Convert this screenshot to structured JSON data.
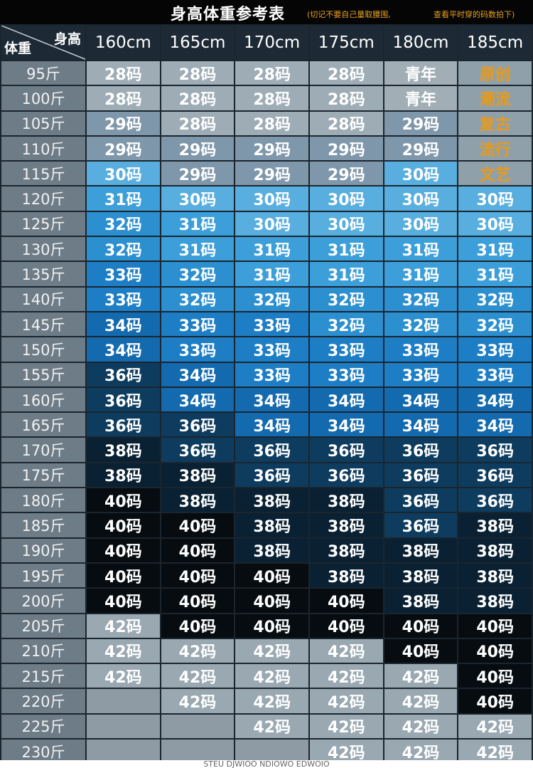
{
  "header": {
    "title": "身高体重参考表",
    "note_left": "(切记不要自己量取腰围,",
    "note_right": "查看平时穿的码数拍下)"
  },
  "table": {
    "corner_top": "身高",
    "corner_bottom": "体重",
    "columns": [
      "160cm",
      "165cm",
      "170cm",
      "175cm",
      "180cm",
      "185cm"
    ],
    "rows": [
      {
        "weight": "95斤",
        "sizes": [
          "28码",
          "28码",
          "28码",
          "28码",
          "青年",
          "原创"
        ]
      },
      {
        "weight": "100斤",
        "sizes": [
          "28码",
          "28码",
          "28码",
          "28码",
          "青年",
          "潮流"
        ]
      },
      {
        "weight": "105斤",
        "sizes": [
          "29码",
          "28码",
          "28码",
          "28码",
          "29码",
          "复古"
        ]
      },
      {
        "weight": "110斤",
        "sizes": [
          "29码",
          "29码",
          "29码",
          "29码",
          "29码",
          "流行"
        ]
      },
      {
        "weight": "115斤",
        "sizes": [
          "30码",
          "29码",
          "29码",
          "29码",
          "30码",
          "文艺"
        ]
      },
      {
        "weight": "120斤",
        "sizes": [
          "31码",
          "30码",
          "30码",
          "30码",
          "30码",
          "30码"
        ]
      },
      {
        "weight": "125斤",
        "sizes": [
          "32码",
          "31码",
          "30码",
          "30码",
          "30码",
          "30码"
        ]
      },
      {
        "weight": "130斤",
        "sizes": [
          "32码",
          "31码",
          "31码",
          "31码",
          "31码",
          "31码"
        ]
      },
      {
        "weight": "135斤",
        "sizes": [
          "33码",
          "32码",
          "31码",
          "31码",
          "31码",
          "31码"
        ]
      },
      {
        "weight": "140斤",
        "sizes": [
          "33码",
          "32码",
          "32码",
          "32码",
          "32码",
          "32码"
        ]
      },
      {
        "weight": "145斤",
        "sizes": [
          "34码",
          "33码",
          "33码",
          "32码",
          "32码",
          "32码"
        ]
      },
      {
        "weight": "150斤",
        "sizes": [
          "34码",
          "33码",
          "33码",
          "33码",
          "33码",
          "33码"
        ]
      },
      {
        "weight": "155斤",
        "sizes": [
          "36码",
          "34码",
          "33码",
          "33码",
          "33码",
          "33码"
        ]
      },
      {
        "weight": "160斤",
        "sizes": [
          "36码",
          "34码",
          "34码",
          "34码",
          "34码",
          "34码"
        ]
      },
      {
        "weight": "165斤",
        "sizes": [
          "36码",
          "36码",
          "34码",
          "34码",
          "34码",
          "34码"
        ]
      },
      {
        "weight": "170斤",
        "sizes": [
          "38码",
          "36码",
          "36码",
          "36码",
          "36码",
          "36码"
        ]
      },
      {
        "weight": "175斤",
        "sizes": [
          "38码",
          "38码",
          "36码",
          "36码",
          "36码",
          "36码"
        ]
      },
      {
        "weight": "180斤",
        "sizes": [
          "40码",
          "38码",
          "38码",
          "38码",
          "36码",
          "36码"
        ]
      },
      {
        "weight": "185斤",
        "sizes": [
          "40码",
          "40码",
          "38码",
          "38码",
          "36码",
          "38码"
        ]
      },
      {
        "weight": "190斤",
        "sizes": [
          "40码",
          "40码",
          "38码",
          "38码",
          "38码",
          "38码"
        ]
      },
      {
        "weight": "195斤",
        "sizes": [
          "40码",
          "40码",
          "40码",
          "38码",
          "38码",
          "38码"
        ]
      },
      {
        "weight": "200斤",
        "sizes": [
          "40码",
          "40码",
          "40码",
          "40码",
          "38码",
          "38码"
        ]
      },
      {
        "weight": "205斤",
        "sizes": [
          "42码",
          "40码",
          "40码",
          "40码",
          "40码",
          "40码"
        ]
      },
      {
        "weight": "210斤",
        "sizes": [
          "42码",
          "42码",
          "42码",
          "42码",
          "40码",
          "40码"
        ]
      },
      {
        "weight": "215斤",
        "sizes": [
          "42码",
          "42码",
          "42码",
          "42码",
          "42码",
          "40码"
        ]
      },
      {
        "weight": "220斤",
        "sizes": [
          null,
          "42码",
          "42码",
          "42码",
          "42码",
          "40码"
        ]
      },
      {
        "weight": "225斤",
        "sizes": [
          null,
          null,
          "42码",
          "42码",
          "42码",
          "42码"
        ]
      },
      {
        "weight": "230斤",
        "sizes": [
          null,
          null,
          null,
          "42码",
          "42码",
          "42码"
        ]
      }
    ]
  },
  "footer": "STEU DJWIOO NDIOWO EDWOIO"
}
